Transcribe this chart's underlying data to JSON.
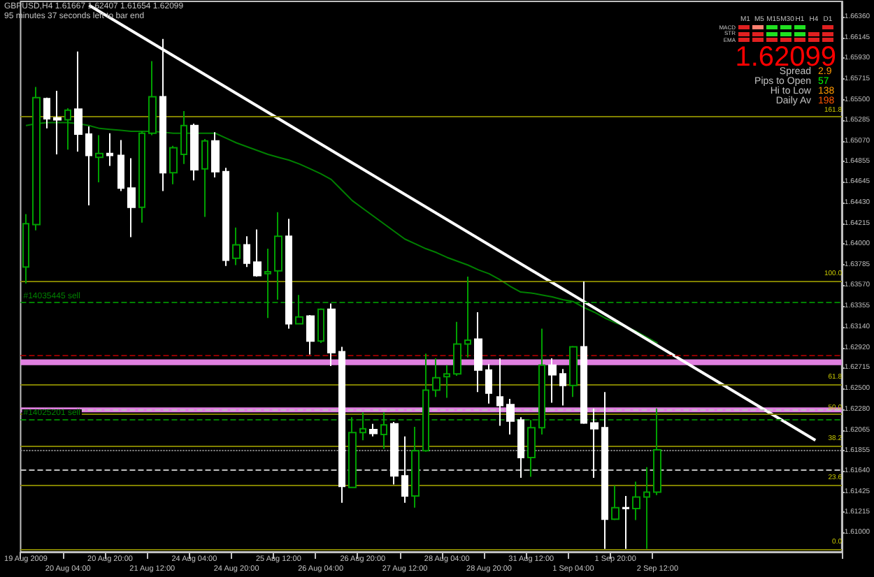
{
  "chart_data": {
    "type": "candlestick",
    "categories": [
      "19 Aug 2009",
      null,
      null,
      null,
      "20 Aug 04:00",
      null,
      null,
      null,
      "20 Aug 20:00",
      null,
      null,
      null,
      "21 Aug 12:00",
      null,
      null,
      null,
      "24 Aug 04:00",
      null,
      null,
      null,
      "24 Aug 20:00",
      null,
      null,
      null,
      "25 Aug 12:00",
      null,
      null,
      null,
      "26 Aug 04:00",
      null,
      null,
      null,
      "26 Aug 20:00",
      null,
      null,
      null,
      "27 Aug 12:00",
      null,
      null,
      null,
      "28 Aug 04:00",
      null,
      null,
      null,
      "28 Aug 20:00",
      null,
      null,
      null,
      "31 Aug 12:00",
      null,
      null,
      null,
      "1 Sep 04:00",
      null,
      null,
      null,
      "1 Sep 20:00",
      null,
      null,
      null,
      "2 Sep 12:00",
      null,
      null,
      null,
      null,
      null,
      null,
      null,
      null,
      null,
      null,
      null,
      null,
      null,
      null,
      null,
      null,
      null
    ],
    "ohlc": [
      [
        1.6376,
        1.6431,
        1.6359,
        1.6421
      ],
      [
        1.642,
        1.6563,
        1.6414,
        1.6552
      ],
      [
        1.6551,
        1.6552,
        1.652,
        1.653
      ],
      [
        1.6531,
        1.6559,
        1.6493,
        1.6529
      ],
      [
        1.6529,
        1.6541,
        1.6498,
        1.6539
      ],
      [
        1.654,
        1.66,
        1.6496,
        1.6514
      ],
      [
        1.6514,
        1.6522,
        1.644,
        1.6492
      ],
      [
        1.649,
        1.6513,
        1.6464,
        1.6494
      ],
      [
        1.6494,
        1.6515,
        1.6481,
        1.6492
      ],
      [
        1.6492,
        1.6508,
        1.6455,
        1.6458
      ],
      [
        1.6458,
        1.6489,
        1.6407,
        1.6438
      ],
      [
        1.6438,
        1.6517,
        1.6422,
        1.6515
      ],
      [
        1.6515,
        1.659,
        1.6513,
        1.6553
      ],
      [
        1.6553,
        1.6613,
        1.6455,
        1.6474
      ],
      [
        1.6474,
        1.6502,
        1.6462,
        1.65
      ],
      [
        1.6493,
        1.6538,
        1.6483,
        1.6523
      ],
      [
        1.6523,
        1.6525,
        1.6466,
        1.6477
      ],
      [
        1.6478,
        1.6509,
        1.6428,
        1.6507
      ],
      [
        1.6507,
        1.6516,
        1.6469,
        1.6475
      ],
      [
        1.6475,
        1.6479,
        1.6377,
        1.6383
      ],
      [
        1.6385,
        1.6417,
        1.6378,
        1.6399
      ],
      [
        1.6399,
        1.6408,
        1.6376,
        1.638
      ],
      [
        1.6381,
        1.6415,
        1.6366,
        1.6367
      ],
      [
        1.6369,
        1.6395,
        1.6323,
        1.6371
      ],
      [
        1.6372,
        1.6433,
        1.6342,
        1.6408
      ],
      [
        1.6408,
        1.6426,
        1.6312,
        1.6317
      ],
      [
        1.6317,
        1.6347,
        1.6317,
        1.6324
      ],
      [
        1.6325,
        1.6326,
        1.6285,
        1.6299
      ],
      [
        1.6299,
        1.6333,
        1.6297,
        1.6332
      ],
      [
        1.6332,
        1.6338,
        1.6273,
        1.6287
      ],
      [
        1.6288,
        1.6293,
        1.6131,
        1.6148
      ],
      [
        1.6147,
        1.622,
        1.6147,
        1.6204
      ],
      [
        1.6204,
        1.6225,
        1.6196,
        1.6208
      ],
      [
        1.6207,
        1.6213,
        1.62,
        1.6203
      ],
      [
        1.6202,
        1.6225,
        1.6187,
        1.6212
      ],
      [
        1.6213,
        1.6215,
        1.615,
        1.6159
      ],
      [
        1.6159,
        1.62,
        1.6131,
        1.6138
      ],
      [
        1.6138,
        1.621,
        1.6126,
        1.6185
      ],
      [
        1.6185,
        1.6286,
        1.6184,
        1.6248
      ],
      [
        1.6248,
        1.6281,
        1.6241,
        1.6261
      ],
      [
        1.6262,
        1.6274,
        1.624,
        1.6265
      ],
      [
        1.6265,
        1.6319,
        1.6263,
        1.6296
      ],
      [
        1.6296,
        1.6366,
        1.6282,
        1.63
      ],
      [
        1.6301,
        1.6329,
        1.6246,
        1.6269
      ],
      [
        1.6269,
        1.6275,
        1.6234,
        1.6245
      ],
      [
        1.6241,
        1.6281,
        1.6211,
        1.6232
      ],
      [
        1.6233,
        1.6239,
        1.6202,
        1.6216
      ],
      [
        1.6217,
        1.622,
        1.6157,
        1.6178
      ],
      [
        1.6178,
        1.6217,
        1.6158,
        1.6209
      ],
      [
        1.6209,
        1.6312,
        1.6202,
        1.6274
      ],
      [
        1.6274,
        1.6281,
        1.6235,
        1.6264
      ],
      [
        1.6265,
        1.627,
        1.6232,
        1.6253
      ],
      [
        1.6253,
        1.6294,
        1.6241,
        1.6293
      ],
      [
        1.6293,
        1.6361,
        1.6213,
        1.6214
      ],
      [
        1.6214,
        1.6229,
        1.6157,
        1.6208
      ],
      [
        1.6209,
        1.6246,
        1.6083,
        1.6114
      ],
      [
        1.6114,
        1.6149,
        1.6113,
        1.6126
      ],
      [
        1.6126,
        1.6138,
        1.6083,
        1.6125
      ],
      [
        1.6125,
        1.6153,
        1.6113,
        1.6137
      ],
      [
        1.6137,
        1.6168,
        1.6083,
        1.6142
      ],
      [
        1.6142,
        1.6229,
        1.6139,
        1.6186
      ],
      null,
      null,
      null,
      null,
      null,
      null,
      null,
      null,
      null,
      null,
      null,
      null,
      null,
      null,
      null,
      null,
      null
    ],
    "colors": [
      "#00a000",
      "#00a000",
      "#ffffff",
      "#ffffff",
      "#00a000",
      "#ffffff",
      "#ffffff",
      "#00a000",
      "#ffffff",
      "#ffffff",
      "#ffffff",
      "#00a000",
      "#00a000",
      "#ffffff",
      "#00a000",
      "#00a000",
      "#ffffff",
      "#00a000",
      "#ffffff",
      "#ffffff",
      "#00a000",
      "#ffffff",
      "#ffffff",
      "#00a000",
      "#00a000",
      "#ffffff",
      "#00a000",
      "#ffffff",
      "#00a000",
      "#ffffff",
      "#ffffff",
      "#00a000",
      "#00a000",
      "#ffffff",
      "#00a000",
      "#ffffff",
      "#ffffff",
      "#00a000",
      "#00a000",
      "#00a000",
      "#00a000",
      "#00a000",
      "#00a000",
      "#ffffff",
      "#ffffff",
      "#ffffff",
      "#ffffff",
      "#ffffff",
      "#00a000",
      "#00a000",
      "#ffffff",
      "#ffffff",
      "#00a000",
      "#ffffff",
      "#ffffff",
      "#ffffff",
      "#00a000",
      "#ffffff",
      "#00a000",
      "#00a000",
      "#00a000",
      null,
      null,
      null,
      null,
      null,
      null,
      null,
      null,
      null,
      null,
      null,
      null,
      null,
      null,
      null,
      null,
      null
    ],
    "series": [
      {
        "type": "line",
        "color": "#008000",
        "values": [
          1.6523,
          1.6525,
          1.6526,
          1.6526,
          1.6526,
          1.6525,
          1.6523,
          1.652,
          1.6519,
          1.6518,
          1.6517,
          1.6517,
          1.6517,
          1.6516,
          1.6515,
          1.6515,
          1.6515,
          1.6515,
          1.6515,
          1.651,
          1.6505,
          1.6501,
          1.6497,
          1.6493,
          1.649,
          1.6487,
          1.6483,
          1.6478,
          1.6473,
          1.6467,
          1.6456,
          1.6445,
          1.6437,
          1.6429,
          1.6421,
          1.6413,
          1.6405,
          1.64,
          1.6395,
          1.6391,
          1.6386,
          1.6382,
          1.6378,
          1.6373,
          1.6369,
          1.6363,
          1.6356,
          1.635,
          1.6349,
          1.6347,
          1.6345,
          1.6342,
          1.634,
          1.6334,
          1.6329,
          1.6323,
          1.6318,
          1.6314,
          1.6309,
          1.6303,
          1.6297,
          null,
          null,
          null,
          null,
          null,
          null,
          null,
          null,
          null,
          null,
          null,
          null,
          null,
          null,
          null,
          null,
          null
        ]
      },
      {
        "type": "line",
        "color": "#ffffff",
        "values": [
          null,
          null,
          null,
          null,
          null,
          null,
          1.6648,
          null,
          null,
          null,
          null,
          null,
          null,
          null,
          null,
          null,
          null,
          null,
          null,
          null,
          null,
          null,
          null,
          null,
          null,
          null,
          null,
          null,
          null,
          null,
          null,
          null,
          null,
          null,
          null,
          null,
          null,
          null,
          null,
          null,
          null,
          null,
          null,
          null,
          null,
          null,
          null,
          null,
          null,
          null,
          null,
          null,
          null,
          null,
          null,
          null,
          null,
          null,
          null,
          null,
          null,
          null,
          null,
          null,
          null,
          null,
          null,
          null,
          null,
          null,
          null,
          null,
          null,
          null,
          null,
          1.6196,
          null,
          null
        ]
      }
    ],
    "ylim": [
      1.608,
      1.6652
    ],
    "yticks": [
      {
        "value": 1.6636,
        "label": "1.66360"
      },
      {
        "value": 1.66145,
        "label": "1.66145"
      },
      {
        "value": 1.6593,
        "label": "1.65930"
      },
      {
        "value": 1.65715,
        "label": "1.65715"
      },
      {
        "value": 1.655,
        "label": "1.65500"
      },
      {
        "value": 1.65285,
        "label": "1.65285"
      },
      {
        "value": 1.6507,
        "label": "1.65070"
      },
      {
        "value": 1.64855,
        "label": "1.64855"
      },
      {
        "value": 1.64645,
        "label": "1.64645"
      },
      {
        "value": 1.6443,
        "label": "1.64430"
      },
      {
        "value": 1.64215,
        "label": "1.64215"
      },
      {
        "value": 1.64,
        "label": "1.64000"
      },
      {
        "value": 1.63785,
        "label": "1.63785"
      },
      {
        "value": 1.6357,
        "label": "1.63570"
      },
      {
        "value": 1.63355,
        "label": "1.63355"
      },
      {
        "value": 1.6314,
        "label": "1.63140"
      },
      {
        "value": 1.6292,
        "label": "1.62920"
      },
      {
        "value": 1.62715,
        "label": "1.62715"
      },
      {
        "value": 1.625,
        "label": "1.62500"
      },
      {
        "value": 1.6228,
        "label": "1.62280"
      },
      {
        "value": 1.62065,
        "label": "1.62065"
      },
      {
        "value": 1.61855,
        "label": "1.61855"
      },
      {
        "value": 1.6164,
        "label": "1.61640"
      },
      {
        "value": 1.61425,
        "label": "1.61425"
      },
      {
        "value": 1.61215,
        "label": "1.61215"
      },
      {
        "value": 1.61,
        "label": "1.61000"
      }
    ],
    "marker": "none",
    "ref_lines": [
      {
        "axis": "y",
        "value": 1.6339,
        "label": "#14035445 sell",
        "color": "#008000",
        "line_style": "dashed"
      },
      {
        "axis": "y",
        "value": 1.6218,
        "label": "#14025201 sell",
        "color": "#008000",
        "line_style": "dashed"
      },
      {
        "axis": "y",
        "value": 1.6284,
        "color": "#900000",
        "line_style": "dashed"
      },
      {
        "axis": "y",
        "value": 1.6228,
        "color": "#c0c0c0",
        "line_style": "dashed"
      },
      {
        "axis": "y",
        "value": 1.6166,
        "color": "#c0c0c0",
        "line_style": "dashed"
      },
      {
        "axis": "y",
        "value": 1.6186,
        "color": "#909090",
        "line_style": "dotted"
      },
      {
        "axis": "y",
        "value": 1.615,
        "color": "#a040a0",
        "line_style": "solid"
      },
      {
        "axis": "y",
        "value": 1.6532,
        "color": "#808000",
        "line_style": "solid"
      },
      {
        "axis": "y",
        "value": 1.6361,
        "color": "#808000",
        "line_style": "solid"
      },
      {
        "axis": "y",
        "value": 1.6254,
        "color": "#808000",
        "line_style": "solid"
      },
      {
        "axis": "y",
        "value": 1.6223,
        "color": "#808000",
        "line_style": "solid"
      },
      {
        "axis": "y",
        "value": 1.619,
        "color": "#808000",
        "line_style": "solid"
      },
      {
        "axis": "y",
        "value": 1.6149,
        "color": "#808000",
        "line_style": "solid"
      },
      {
        "axis": "y",
        "value": 1.6083,
        "color": "#808000",
        "line_style": "solid"
      }
    ],
    "bands": [
      {
        "axis": "y",
        "from": 1.6274,
        "to": 1.628,
        "color": "#e080e0"
      },
      {
        "axis": "y",
        "from": 1.6225,
        "to": 1.623,
        "color": "#e080e0"
      }
    ],
    "annotations": [
      "GBPUSD,H4  1.61667 1.62407 1.61654 1.62099",
      "95 minutes 37 seconds left to bar end",
      "M1",
      "M5",
      "M15",
      "M30",
      "H1",
      "H4",
      "D1",
      "MACD",
      "STR",
      "EMA",
      "1.62099",
      "Spread",
      "2.9",
      "Pips to Open",
      "57",
      "Hi to Low",
      "138",
      "Daily Av",
      "198",
      {
        "text": "161.8",
        "y": 1.6532
      },
      {
        "text": "100.0",
        "y": 1.6361
      },
      {
        "text": "61.8",
        "y": 1.6254
      },
      {
        "text": "50.0",
        "y": 1.6223
      },
      {
        "text": "38.2",
        "y": 1.619
      },
      {
        "text": "23.6",
        "y": 1.6149
      },
      {
        "text": "0.0",
        "y": 1.6083
      }
    ]
  }
}
